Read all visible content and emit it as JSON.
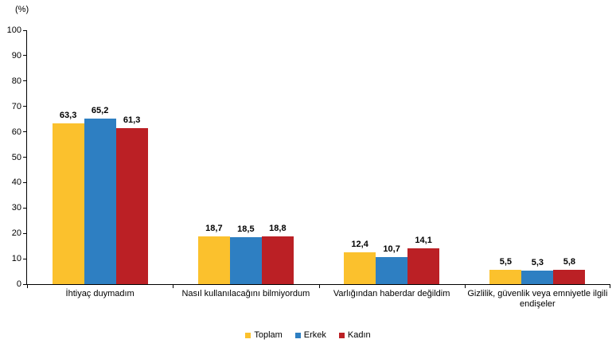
{
  "chart_data": {
    "type": "bar",
    "title": "",
    "unit_label": "(%)",
    "categories": [
      "İhtiyaç duymadım",
      "Nasıl kullanılacağını bilmiyordum",
      "Varlığından haberdar değildim",
      "Gizlilik, güvenlik veya emniyetle ilgili endişeler"
    ],
    "series": [
      {
        "name": "Toplam",
        "color": "#FBC12D",
        "values": [
          63.3,
          18.7,
          12.4,
          5.5
        ]
      },
      {
        "name": "Erkek",
        "color": "#2E7FC2",
        "values": [
          65.2,
          18.5,
          10.7,
          5.3
        ]
      },
      {
        "name": "Kadın",
        "color": "#BB2025",
        "values": [
          61.3,
          18.8,
          14.1,
          5.8
        ]
      }
    ],
    "value_label_decimal_separator": ",",
    "ylim": [
      0,
      100
    ],
    "yticks": [
      0,
      10,
      20,
      30,
      40,
      50,
      60,
      70,
      80,
      90,
      100
    ],
    "grid": false,
    "legend_position": "bottom",
    "axis_color": "#000000",
    "background_color": "#ffffff"
  }
}
